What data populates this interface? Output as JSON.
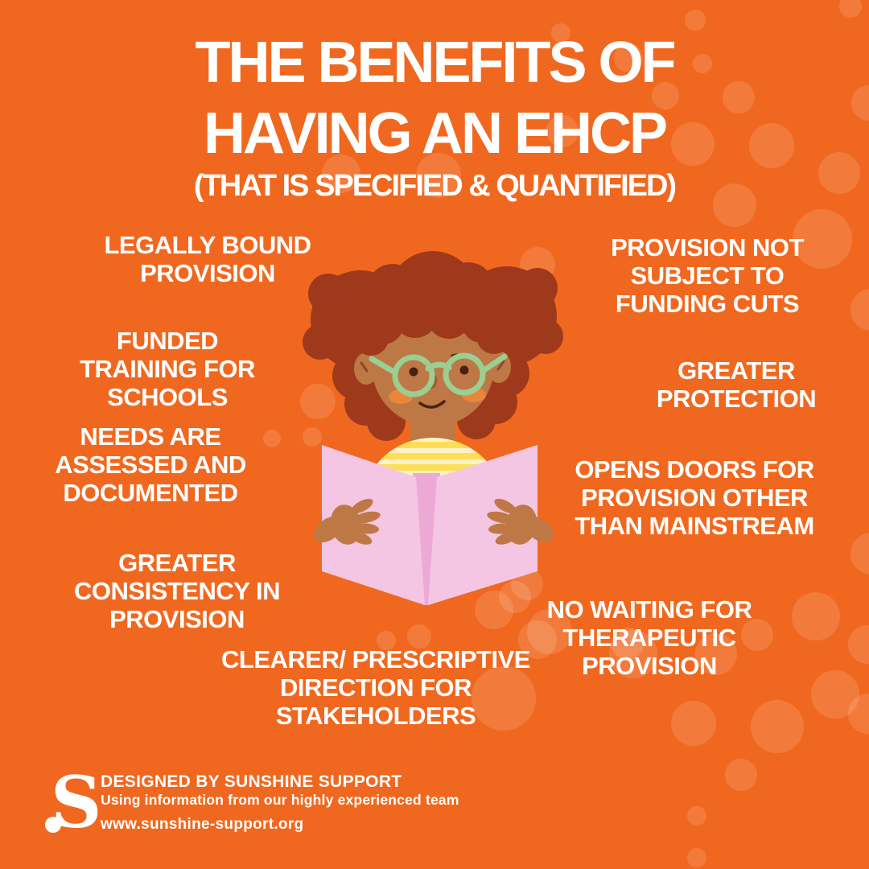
{
  "poster": {
    "title_line1": "THE BENEFITS OF",
    "title_line2": "HAVING AN EHCP",
    "subtitle": "(THAT IS SPECIFIED & QUANTIFIED)",
    "benefits": [
      {
        "text": "LEGALLY BOUND PROVISION"
      },
      {
        "text": "PROVISION NOT SUBJECT TO FUNDING CUTS"
      },
      {
        "text": "FUNDED TRAINING FOR SCHOOLS"
      },
      {
        "text": "GREATER PROTECTION"
      },
      {
        "text": "NEEDS ARE ASSESSED AND DOCUMENTED"
      },
      {
        "text": "OPENS DOORS FOR PROVISION OTHER THAN MAINSTREAM"
      },
      {
        "text": "GREATER CONSISTENCY IN PROVISION"
      },
      {
        "text": "NO WAITING FOR THERAPEUTIC PROVISION"
      },
      {
        "text": "CLEARER/ PRESCRIPTIVE DIRECTION FOR STAKEHOLDERS"
      }
    ],
    "illustration": "child-reading-book",
    "footer": {
      "logo_letter": "S",
      "designed_by": "DESIGNED BY SUNSHINE SUPPORT",
      "tagline": "Using information  from our highly experienced team",
      "website": "www.sunshine-support.org"
    },
    "colors": {
      "background": "#F0681F",
      "text": "#FFFFFF",
      "hair": "#9E3A1B",
      "skin": "#BE7846",
      "glasses": "#9ACE92",
      "book_cover": "#F5C6E3",
      "book_spine": "#ECA9D6",
      "shirt_base": "#FBF2C8",
      "shirt_stripe": "#FFDE55"
    }
  }
}
